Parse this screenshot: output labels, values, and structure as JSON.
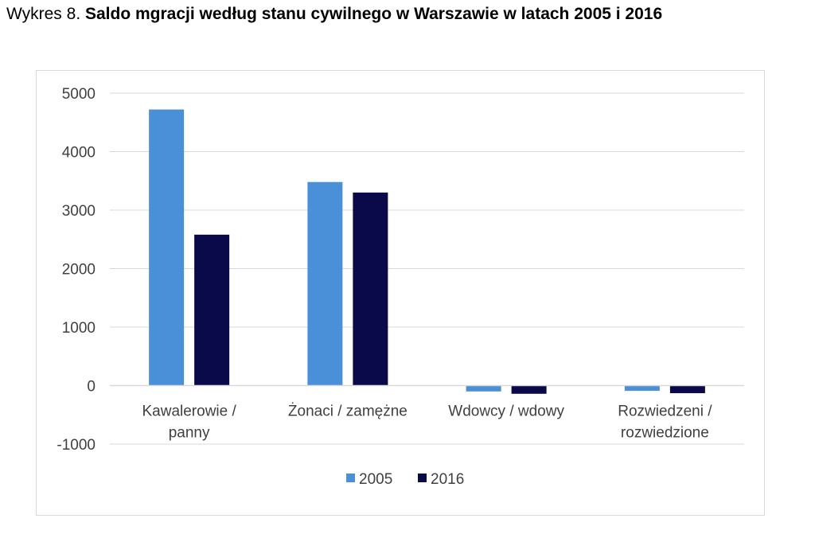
{
  "title": {
    "prefix": "Wykres 8. ",
    "main": "Saldo mgracji według stanu cywilnego w Warszawie w latach 2005 i 2016"
  },
  "chart_data": {
    "type": "bar",
    "categories": [
      [
        "Kawalerowie /",
        "panny"
      ],
      [
        "Żonaci / zamężne"
      ],
      [
        "Wdowcy / wdowy"
      ],
      [
        "Rozwiedzeni /",
        "rozwiedzione"
      ]
    ],
    "series": [
      {
        "name": "2005",
        "color": "#4a90d9",
        "values": [
          4720,
          3480,
          -100,
          -90
        ]
      },
      {
        "name": "2016",
        "color": "#0a0a4a",
        "values": [
          2580,
          3300,
          -140,
          -130
        ]
      }
    ],
    "ylim": [
      -1000,
      5000
    ],
    "yticks": [
      5000,
      4000,
      3000,
      2000,
      1000,
      0,
      -1000
    ],
    "grid": true,
    "legend": "bottom"
  }
}
